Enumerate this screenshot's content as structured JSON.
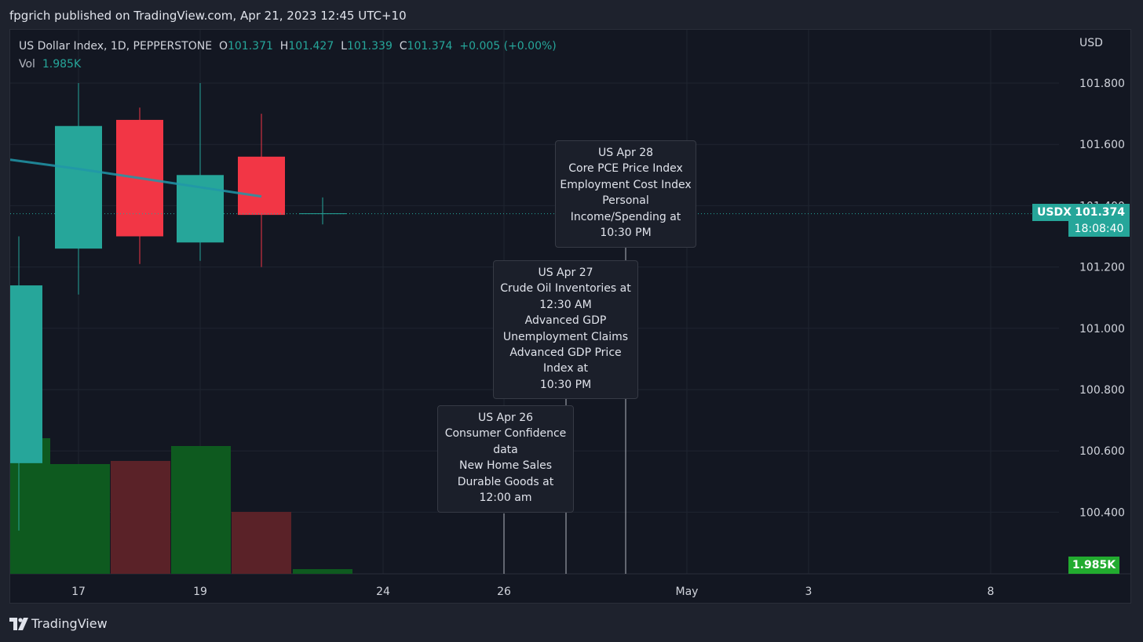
{
  "publish_line": "fpgrich published on TradingView.com, Apr 21, 2023 12:45 UTC+10",
  "legend": {
    "symbol": "US Dollar Index, 1D, PEPPERSTONE",
    "o_label": "O",
    "o_value": "101.371",
    "h_label": "H",
    "h_value": "101.427",
    "l_label": "L",
    "l_value": "101.339",
    "c_label": "C",
    "c_value": "101.374",
    "change": "+0.005 (+0.00%)",
    "vol_label": "Vol",
    "vol_value": "1.985K"
  },
  "price_axis": {
    "currency": "USD",
    "ticks": [
      "101.800",
      "101.600",
      "101.400",
      "101.200",
      "101.000",
      "100.800",
      "100.600",
      "100.400"
    ]
  },
  "time_axis": {
    "ticks": [
      "17",
      "19",
      "24",
      "26",
      "May",
      "3",
      "8"
    ]
  },
  "last_price": {
    "symbol": "USDX",
    "price": "101.374",
    "countdown": "18:08:40"
  },
  "volume_badge": "1.985K",
  "events": [
    {
      "title": "US Apr 28",
      "lines": [
        "Core PCE Price Index",
        "Employment Cost Index",
        "Personal",
        "Income/Spending at",
        "10:30 PM"
      ]
    },
    {
      "title": "US Apr 27",
      "lines": [
        "Crude Oil Inventories at",
        "12:30 AM",
        "Advanced GDP",
        "Unemployment Claims",
        "Advanced GDP Price",
        "Index at",
        "10:30 PM"
      ]
    },
    {
      "title": "US Apr 26",
      "lines": [
        "Consumer Confidence",
        "data",
        "New Home Sales",
        "Durable Goods at",
        "12:00 am"
      ]
    }
  ],
  "footer": {
    "brand": "TradingView"
  },
  "colors": {
    "up": "#26a69a",
    "down": "#f23645",
    "vol_up": "#0e5a1f",
    "vol_down": "#5a2228",
    "background": "#131722",
    "ma_line": "#2196a8"
  },
  "chart_data": {
    "type": "candlestick",
    "ylim": [
      100.2,
      101.9
    ],
    "candles": [
      {
        "x": "Apr 17",
        "open": 101.26,
        "high": 101.8,
        "low": 101.11,
        "close": 101.66
      },
      {
        "x": "Apr 18",
        "open": 101.68,
        "high": 101.72,
        "low": 101.21,
        "close": 101.3
      },
      {
        "x": "Apr 19",
        "open": 101.28,
        "high": 101.8,
        "low": 101.22,
        "close": 101.5
      },
      {
        "x": "Apr 20",
        "open": 101.56,
        "high": 101.7,
        "low": 101.2,
        "close": 101.37
      },
      {
        "x": "Apr 21",
        "open": 101.371,
        "high": 101.427,
        "low": 101.339,
        "close": 101.374
      }
    ],
    "partial_candle": {
      "x": "Apr 14",
      "open": 100.56,
      "close": 101.14,
      "high": 101.3,
      "low": 100.34
    },
    "volume": [
      {
        "x": "Apr 14",
        "direction": "up"
      },
      {
        "x": "Apr 17",
        "direction": "up"
      },
      {
        "x": "Apr 18",
        "direction": "down"
      },
      {
        "x": "Apr 19",
        "direction": "up"
      },
      {
        "x": "Apr 20",
        "direction": "down"
      },
      {
        "x": "Apr 21",
        "direction": "up",
        "value": "1.985K"
      }
    ],
    "moving_average": [
      101.55,
      101.52,
      101.49,
      101.46,
      101.43
    ],
    "event_markers": [
      "Apr 26",
      "Apr 27",
      "Apr 28"
    ]
  }
}
